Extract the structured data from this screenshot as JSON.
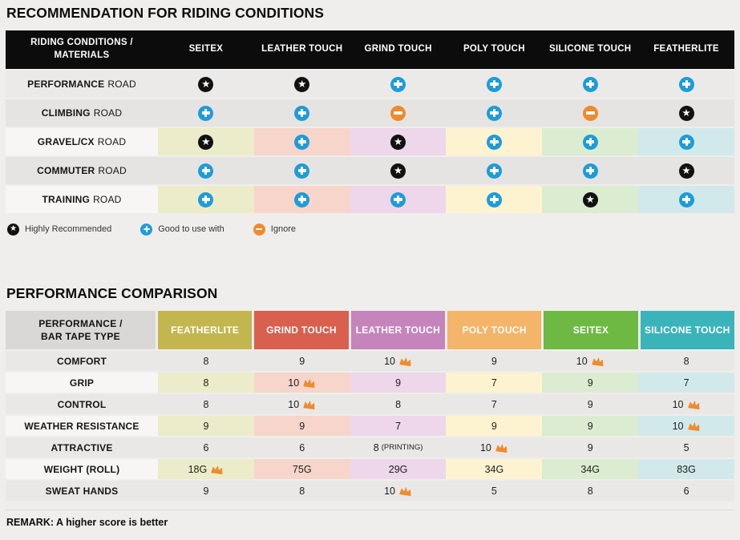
{
  "colors": {
    "page_bg": "#efeeec",
    "header_bar": "#0c0c0c",
    "row_light": "#ebeae8",
    "row_dark": "#e5e4e2",
    "row_mid": "#e9e8e6",
    "label_light": "#f7f6f4",
    "t2_label_bg": "#d9d8d6",
    "plus": "#1e9cd8",
    "minus": "#f08a2a",
    "star": "#111111",
    "crown": "#f08a2a",
    "divider": "#dcdbd9"
  },
  "pale_palette": [
    "#edecca",
    "#f7d5cb",
    "#eed7ea",
    "#fdf3d1",
    "#dcecd1",
    "#d2e9eb"
  ],
  "table1": {
    "title": "RECOMMENDATION FOR RIDING CONDITIONS",
    "header": [
      "RIDING CONDITIONS /\nMATERIALS",
      "SEITEX",
      "LEATHER TOUCH",
      "GRIND TOUCH",
      "POLY TOUCH",
      "SILICONE TOUCH",
      "FEATHERLITE"
    ],
    "rows": [
      {
        "label_bold": "PERFORMANCE",
        "label_rest": "ROAD",
        "colored": false,
        "shade": "light",
        "cells": [
          "star",
          "star",
          "plus",
          "plus",
          "plus",
          "plus"
        ]
      },
      {
        "label_bold": "CLIMBING",
        "label_rest": "ROAD",
        "colored": false,
        "shade": "dark",
        "cells": [
          "plus",
          "plus",
          "minus",
          "plus",
          "minus",
          "star"
        ]
      },
      {
        "label_bold": "GRAVEL/CX",
        "label_rest": "ROAD",
        "colored": true,
        "shade": "light",
        "cells": [
          "star",
          "plus",
          "star",
          "plus",
          "plus",
          "plus"
        ]
      },
      {
        "label_bold": "COMMUTER",
        "label_rest": "ROAD",
        "colored": false,
        "shade": "dark",
        "cells": [
          "plus",
          "plus",
          "star",
          "plus",
          "plus",
          "star"
        ]
      },
      {
        "label_bold": "TRAINING",
        "label_rest": "ROAD",
        "colored": true,
        "shade": "light",
        "cells": [
          "plus",
          "plus",
          "plus",
          "plus",
          "star",
          "plus"
        ]
      }
    ]
  },
  "legend": [
    {
      "icon": "star",
      "label": "Highly Recommended"
    },
    {
      "icon": "plus",
      "label": "Good to use with"
    },
    {
      "icon": "minus",
      "label": "Ignore"
    }
  ],
  "table2": {
    "title": "PERFORMANCE COMPARISON",
    "header_label": "PERFORMANCE /\nBAR TAPE TYPE",
    "columns": [
      {
        "label": "FEATHERLITE",
        "color": "#c3b64f"
      },
      {
        "label": "GRIND TOUCH",
        "color": "#d95f4f"
      },
      {
        "label": "LEATHER TOUCH",
        "color": "#c584bb"
      },
      {
        "label": "POLY TOUCH",
        "color": "#f4b469"
      },
      {
        "label": "SEITEX",
        "color": "#6eb844"
      },
      {
        "label": "SILICONE TOUCH",
        "color": "#3ab3bb"
      }
    ],
    "rows": [
      {
        "label": "COMFORT",
        "colored": false,
        "cells": [
          {
            "v": "8"
          },
          {
            "v": "9"
          },
          {
            "v": "10",
            "crown": true
          },
          {
            "v": "9"
          },
          {
            "v": "10",
            "crown": true
          },
          {
            "v": "8"
          }
        ]
      },
      {
        "label": "GRIP",
        "colored": true,
        "cells": [
          {
            "v": "8"
          },
          {
            "v": "10",
            "crown": true
          },
          {
            "v": "9"
          },
          {
            "v": "7"
          },
          {
            "v": "9"
          },
          {
            "v": "7"
          }
        ]
      },
      {
        "label": "CONTROL",
        "colored": false,
        "cells": [
          {
            "v": "8"
          },
          {
            "v": "10",
            "crown": true
          },
          {
            "v": "8"
          },
          {
            "v": "7"
          },
          {
            "v": "9"
          },
          {
            "v": "10",
            "crown": true
          }
        ]
      },
      {
        "label": "WEATHER RESISTANCE",
        "colored": true,
        "cells": [
          {
            "v": "9"
          },
          {
            "v": "9"
          },
          {
            "v": "7"
          },
          {
            "v": "9"
          },
          {
            "v": "9"
          },
          {
            "v": "10",
            "crown": true
          }
        ]
      },
      {
        "label": "ATTRACTIVE",
        "colored": false,
        "cells": [
          {
            "v": "6"
          },
          {
            "v": "6"
          },
          {
            "v": "8",
            "note": "(PRINTING)"
          },
          {
            "v": "10",
            "crown": true
          },
          {
            "v": "9"
          },
          {
            "v": "5"
          }
        ]
      },
      {
        "label": "WEIGHT (ROLL)",
        "colored": true,
        "cells": [
          {
            "v": "18G",
            "crown": true
          },
          {
            "v": "75G"
          },
          {
            "v": "29G"
          },
          {
            "v": "34G"
          },
          {
            "v": "34G"
          },
          {
            "v": "83G"
          }
        ]
      },
      {
        "label": "SWEAT HANDS",
        "colored": false,
        "cells": [
          {
            "v": "9"
          },
          {
            "v": "8"
          },
          {
            "v": "10",
            "crown": true
          },
          {
            "v": "5"
          },
          {
            "v": "8"
          },
          {
            "v": "6"
          }
        ]
      }
    ],
    "remark": "REMARK: A higher score is better"
  },
  "chart_data": [
    {
      "type": "table",
      "title": "RECOMMENDATION FOR RIDING CONDITIONS",
      "columns": [
        "SEITEX",
        "LEATHER TOUCH",
        "GRIND TOUCH",
        "POLY TOUCH",
        "SILICONE TOUCH",
        "FEATHERLITE"
      ],
      "rows": [
        "PERFORMANCE ROAD",
        "CLIMBING ROAD",
        "GRAVEL/CX ROAD",
        "COMMUTER ROAD",
        "TRAINING ROAD"
      ],
      "values": [
        [
          "highly_recommended",
          "highly_recommended",
          "good_to_use_with",
          "good_to_use_with",
          "good_to_use_with",
          "good_to_use_with"
        ],
        [
          "good_to_use_with",
          "good_to_use_with",
          "ignore",
          "good_to_use_with",
          "ignore",
          "highly_recommended"
        ],
        [
          "highly_recommended",
          "good_to_use_with",
          "highly_recommended",
          "good_to_use_with",
          "good_to_use_with",
          "good_to_use_with"
        ],
        [
          "good_to_use_with",
          "good_to_use_with",
          "highly_recommended",
          "good_to_use_with",
          "good_to_use_with",
          "highly_recommended"
        ],
        [
          "good_to_use_with",
          "good_to_use_with",
          "good_to_use_with",
          "good_to_use_with",
          "highly_recommended",
          "good_to_use_with"
        ]
      ],
      "legend": {
        "star": "Highly Recommended",
        "plus": "Good to use with",
        "minus": "Ignore"
      }
    },
    {
      "type": "table",
      "title": "PERFORMANCE COMPARISON",
      "columns": [
        "FEATHERLITE",
        "GRIND TOUCH",
        "LEATHER TOUCH",
        "POLY TOUCH",
        "SEITEX",
        "SILICONE TOUCH"
      ],
      "rows": [
        "COMFORT",
        "GRIP",
        "CONTROL",
        "WEATHER RESISTANCE",
        "ATTRACTIVE",
        "WEIGHT (ROLL)",
        "SWEAT HANDS"
      ],
      "values": [
        [
          8,
          9,
          10,
          9,
          10,
          8
        ],
        [
          8,
          10,
          9,
          7,
          9,
          7
        ],
        [
          8,
          10,
          8,
          7,
          9,
          10
        ],
        [
          9,
          9,
          7,
          9,
          9,
          10
        ],
        [
          6,
          6,
          8,
          10,
          9,
          5
        ],
        [
          "18G",
          "75G",
          "29G",
          "34G",
          "34G",
          "83G"
        ],
        [
          9,
          8,
          10,
          5,
          8,
          6
        ]
      ],
      "crown_markers": [
        [
          "LEATHER TOUCH",
          "SEITEX"
        ],
        [
          "GRIND TOUCH"
        ],
        [
          "GRIND TOUCH",
          "SILICONE TOUCH"
        ],
        [
          "SILICONE TOUCH"
        ],
        [
          "POLY TOUCH"
        ],
        [
          "FEATHERLITE"
        ],
        [
          "LEATHER TOUCH"
        ]
      ],
      "note": "ATTRACTIVE / LEATHER TOUCH shown as 8 (PRINTING)",
      "remark": "REMARK: A higher score is better"
    }
  ]
}
